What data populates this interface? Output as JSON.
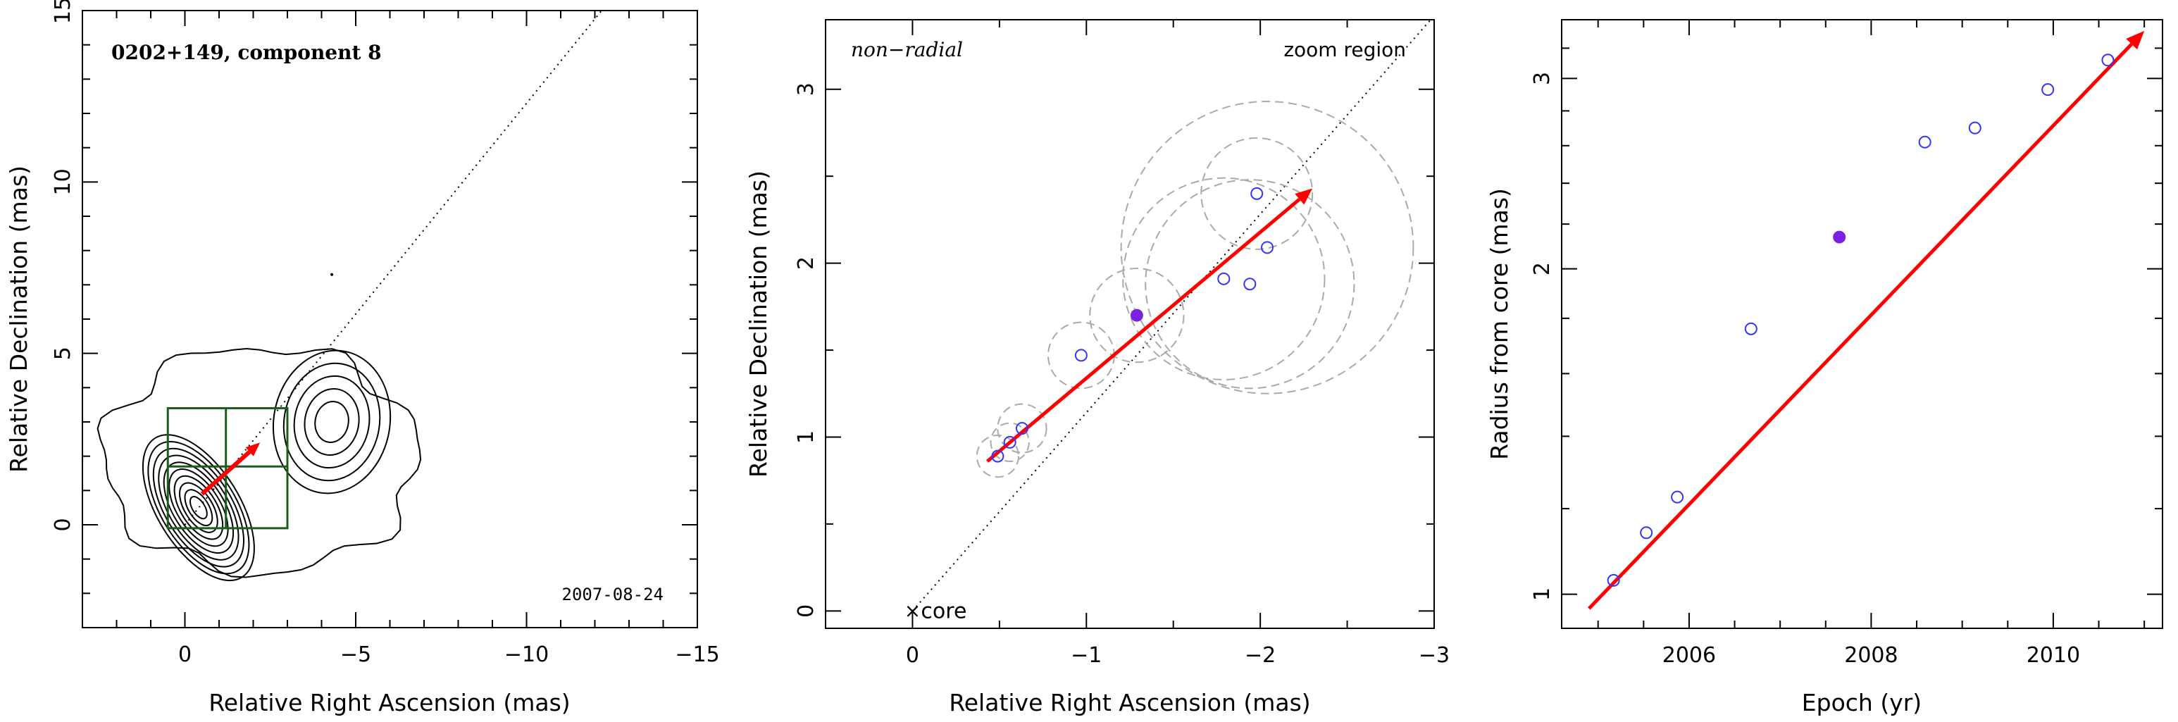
{
  "chart_data": [
    {
      "type": "contour",
      "title": "0202+149, component 8",
      "date": "2007-08-24",
      "xlabel": "Relative Right Ascension (mas)",
      "ylabel": "Relative Declination (mas)",
      "xlim": [
        3,
        -15
      ],
      "ylim": [
        -3,
        15
      ],
      "xticks": [
        {
          "v": 0,
          "t": "0"
        },
        {
          "v": -5,
          "t": "−5"
        },
        {
          "v": -10,
          "t": "−10"
        },
        {
          "v": -15,
          "t": "−15"
        }
      ],
      "yticks": [
        {
          "v": 0,
          "t": "0"
        },
        {
          "v": 5,
          "t": "5"
        },
        {
          "v": 10,
          "t": "10"
        },
        {
          "v": 15,
          "t": "15"
        }
      ],
      "zoom_box": {
        "x": [
          0.5,
          -3.0
        ],
        "y": [
          -0.1,
          3.4
        ],
        "split_x": -1.2,
        "split_y": 1.7,
        "color": "#1b5e1b"
      },
      "motion_arrow": {
        "from": [
          -0.5,
          0.9
        ],
        "to": [
          -2.2,
          2.4
        ],
        "color": "#ff0000"
      },
      "direction_line": {
        "from": [
          0,
          0
        ],
        "to": [
          -12.2,
          15
        ]
      },
      "core_component": {
        "center": [
          -0.4,
          0.5
        ],
        "levels": 10
      },
      "jet_component": {
        "center": [
          -4.3,
          3.0
        ],
        "levels": 5
      }
    },
    {
      "type": "scatter",
      "label": "non−radial",
      "corner_note": "zoom region",
      "core_label": "core",
      "xlabel": "Relative Right Ascension (mas)",
      "ylabel": "Relative Declination (mas)",
      "xlim": [
        0.5,
        -3.0
      ],
      "ylim": [
        -0.1,
        3.4
      ],
      "xticks": [
        {
          "v": 0,
          "t": "0"
        },
        {
          "v": -1,
          "t": "−1"
        },
        {
          "v": -2,
          "t": "−2"
        },
        {
          "v": -3,
          "t": "−3"
        }
      ],
      "yticks": [
        {
          "v": 0,
          "t": "0"
        },
        {
          "v": 1,
          "t": "1"
        },
        {
          "v": 2,
          "t": "2"
        },
        {
          "v": 3,
          "t": "3"
        }
      ],
      "points": [
        {
          "x": -0.49,
          "y": 0.89,
          "r": 0.12
        },
        {
          "x": -0.56,
          "y": 0.97,
          "r": 0.11
        },
        {
          "x": -0.63,
          "y": 1.05,
          "r": 0.14
        },
        {
          "x": -0.97,
          "y": 1.47,
          "r": 0.19
        },
        {
          "x": -1.29,
          "y": 1.7,
          "r": 0.27,
          "filled": true
        },
        {
          "x": -1.79,
          "y": 1.91,
          "r": 0.58
        },
        {
          "x": -1.94,
          "y": 1.88,
          "r": 0.6
        },
        {
          "x": -1.98,
          "y": 2.4,
          "r": 0.32
        },
        {
          "x": -2.04,
          "y": 2.09,
          "r": 0.84
        }
      ],
      "point_color": "#3333ff",
      "filled_color": "#7a22e0",
      "motion_arrow": {
        "from": [
          -0.43,
          0.86
        ],
        "to": [
          -2.3,
          2.43
        ],
        "color": "#ff0000"
      },
      "direction_line": {
        "from": [
          0,
          0
        ],
        "to": [
          -2.98,
          3.4
        ]
      }
    },
    {
      "type": "scatter",
      "xlabel": "Epoch (yr)",
      "ylabel": "Radius from core (mas)",
      "xlim": [
        2004.6,
        2011.2
      ],
      "ylim": [
        0.93,
        3.4
      ],
      "ylog": true,
      "xticks": [
        {
          "v": 2006,
          "t": "2006"
        },
        {
          "v": 2008,
          "t": "2008"
        },
        {
          "v": 2010,
          "t": "2010"
        }
      ],
      "yticks": [
        {
          "v": 1,
          "t": "1"
        },
        {
          "v": 2,
          "t": "2"
        },
        {
          "v": 3,
          "t": "3"
        }
      ],
      "points": [
        {
          "x": 2005.17,
          "y": 1.03
        },
        {
          "x": 2005.53,
          "y": 1.14
        },
        {
          "x": 2005.87,
          "y": 1.23
        },
        {
          "x": 2006.68,
          "y": 1.76
        },
        {
          "x": 2007.65,
          "y": 2.14,
          "filled": true
        },
        {
          "x": 2008.59,
          "y": 2.62
        },
        {
          "x": 2009.14,
          "y": 2.7
        },
        {
          "x": 2009.94,
          "y": 2.93
        },
        {
          "x": 2010.6,
          "y": 3.12
        }
      ],
      "point_color": "#3333ff",
      "filled_color": "#7a22e0",
      "fit_line": {
        "x": [
          2004.9,
          2011.0
        ],
        "y": [
          0.97,
          3.32
        ],
        "color": "#ff0000"
      }
    }
  ]
}
